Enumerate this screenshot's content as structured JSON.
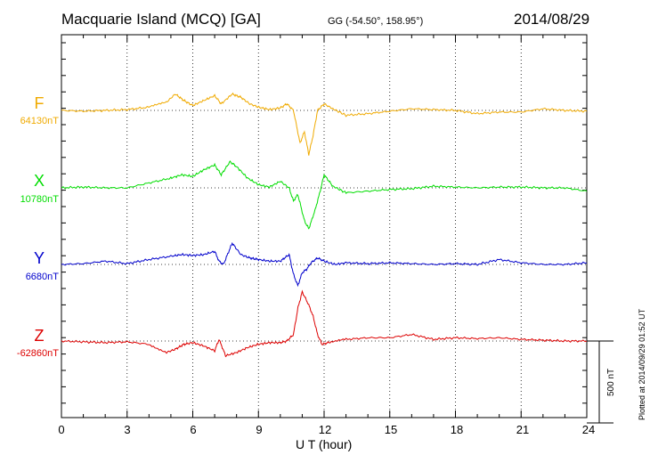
{
  "header": {
    "station": "Macquarie Island (MCQ)  [GA]",
    "coords": "GG (-54.50°, 158.95°)",
    "date": "2014/08/29"
  },
  "plotted_note": "Plotted at 2014/09/29 01:52 UT",
  "scale_bar_label": "500 nT",
  "colors": {
    "F": "#f0aa00",
    "X": "#00dd00",
    "Y": "#0000cc",
    "Z": "#dd0000"
  },
  "chart_data": {
    "type": "line",
    "title": "Macquarie Island (MCQ)  [GA]",
    "xlabel": "U T (hour)",
    "xlim": [
      0,
      24
    ],
    "xticks": [
      "0",
      "3",
      "6",
      "9",
      "12",
      "15",
      "18",
      "21",
      "24"
    ],
    "scale_bar_nT": 500,
    "series": [
      {
        "name": "F",
        "baseline_label": "64130nT",
        "baseline_nT": 64130,
        "points": [
          [
            0,
            0
          ],
          [
            1,
            -5
          ],
          [
            2,
            0
          ],
          [
            3,
            5
          ],
          [
            4,
            20
          ],
          [
            4.8,
            50
          ],
          [
            5.2,
            100
          ],
          [
            5.6,
            60
          ],
          [
            6,
            30
          ],
          [
            6.5,
            60
          ],
          [
            7,
            90
          ],
          [
            7.3,
            40
          ],
          [
            7.8,
            100
          ],
          [
            8.2,
            80
          ],
          [
            8.6,
            40
          ],
          [
            9,
            20
          ],
          [
            9.5,
            5
          ],
          [
            10,
            15
          ],
          [
            10.3,
            40
          ],
          [
            10.6,
            0
          ],
          [
            10.9,
            -200
          ],
          [
            11.1,
            -130
          ],
          [
            11.3,
            -270
          ],
          [
            11.5,
            -150
          ],
          [
            11.7,
            0
          ],
          [
            12,
            40
          ],
          [
            12.4,
            10
          ],
          [
            13,
            -30
          ],
          [
            14,
            -20
          ],
          [
            15,
            -5
          ],
          [
            16,
            10
          ],
          [
            17,
            5
          ],
          [
            18,
            0
          ],
          [
            19,
            -20
          ],
          [
            20,
            -10
          ],
          [
            21,
            -10
          ],
          [
            22,
            10
          ],
          [
            23,
            0
          ],
          [
            24,
            -5
          ]
        ]
      },
      {
        "name": "X",
        "baseline_label": "10780nT",
        "baseline_nT": 10780,
        "points": [
          [
            0,
            0
          ],
          [
            1,
            5
          ],
          [
            2,
            0
          ],
          [
            3,
            0
          ],
          [
            4,
            30
          ],
          [
            5,
            60
          ],
          [
            5.5,
            80
          ],
          [
            6,
            70
          ],
          [
            6.5,
            110
          ],
          [
            7,
            140
          ],
          [
            7.3,
            80
          ],
          [
            7.7,
            160
          ],
          [
            8,
            130
          ],
          [
            8.5,
            60
          ],
          [
            9,
            20
          ],
          [
            9.5,
            5
          ],
          [
            10,
            40
          ],
          [
            10.4,
            0
          ],
          [
            10.6,
            -80
          ],
          [
            10.8,
            -40
          ],
          [
            11.1,
            -200
          ],
          [
            11.3,
            -250
          ],
          [
            11.6,
            -130
          ],
          [
            11.8,
            -30
          ],
          [
            12,
            80
          ],
          [
            12.4,
            10
          ],
          [
            13,
            -30
          ],
          [
            14,
            -20
          ],
          [
            15,
            -10
          ],
          [
            16,
            -5
          ],
          [
            17,
            10
          ],
          [
            18,
            5
          ],
          [
            19,
            0
          ],
          [
            20,
            5
          ],
          [
            21,
            5
          ],
          [
            22,
            0
          ],
          [
            23,
            0
          ],
          [
            24,
            -20
          ]
        ]
      },
      {
        "name": "Y",
        "baseline_label": "6680nT",
        "baseline_nT": 6680,
        "points": [
          [
            0,
            0
          ],
          [
            1,
            5
          ],
          [
            2,
            20
          ],
          [
            3,
            5
          ],
          [
            4,
            30
          ],
          [
            5,
            50
          ],
          [
            5.5,
            60
          ],
          [
            6,
            55
          ],
          [
            6.5,
            60
          ],
          [
            7,
            80
          ],
          [
            7.2,
            20
          ],
          [
            7.4,
            0
          ],
          [
            7.8,
            130
          ],
          [
            8.2,
            60
          ],
          [
            8.6,
            40
          ],
          [
            9,
            30
          ],
          [
            9.5,
            20
          ],
          [
            10,
            20
          ],
          [
            10.4,
            60
          ],
          [
            10.6,
            -60
          ],
          [
            10.8,
            -130
          ],
          [
            11,
            -50
          ],
          [
            11.2,
            -30
          ],
          [
            11.4,
            10
          ],
          [
            11.7,
            40
          ],
          [
            12,
            20
          ],
          [
            12.5,
            0
          ],
          [
            13,
            10
          ],
          [
            14,
            5
          ],
          [
            15,
            10
          ],
          [
            16,
            5
          ],
          [
            17,
            0
          ],
          [
            18,
            5
          ],
          [
            19,
            0
          ],
          [
            20,
            30
          ],
          [
            21,
            10
          ],
          [
            22,
            0
          ],
          [
            23,
            0
          ],
          [
            24,
            10
          ]
        ]
      },
      {
        "name": "Z",
        "baseline_label": "-62860nT",
        "baseline_nT": -62860,
        "points": [
          [
            0,
            0
          ],
          [
            1,
            -5
          ],
          [
            2,
            -10
          ],
          [
            3,
            -5
          ],
          [
            4,
            -20
          ],
          [
            4.8,
            -70
          ],
          [
            5.2,
            -50
          ],
          [
            5.6,
            -20
          ],
          [
            6,
            -10
          ],
          [
            6.5,
            -30
          ],
          [
            7,
            -60
          ],
          [
            7.2,
            10
          ],
          [
            7.5,
            -90
          ],
          [
            8,
            -70
          ],
          [
            8.5,
            -40
          ],
          [
            9,
            -20
          ],
          [
            9.5,
            -10
          ],
          [
            10,
            -10
          ],
          [
            10.3,
            0
          ],
          [
            10.6,
            40
          ],
          [
            10.8,
            200
          ],
          [
            11,
            300
          ],
          [
            11.3,
            220
          ],
          [
            11.5,
            150
          ],
          [
            11.7,
            40
          ],
          [
            11.9,
            -20
          ],
          [
            12.2,
            -10
          ],
          [
            13,
            10
          ],
          [
            14,
            20
          ],
          [
            15,
            20
          ],
          [
            16,
            40
          ],
          [
            17,
            10
          ],
          [
            18,
            20
          ],
          [
            19,
            15
          ],
          [
            20,
            20
          ],
          [
            21,
            10
          ],
          [
            22,
            5
          ],
          [
            23,
            0
          ],
          [
            24,
            0
          ]
        ]
      }
    ]
  }
}
